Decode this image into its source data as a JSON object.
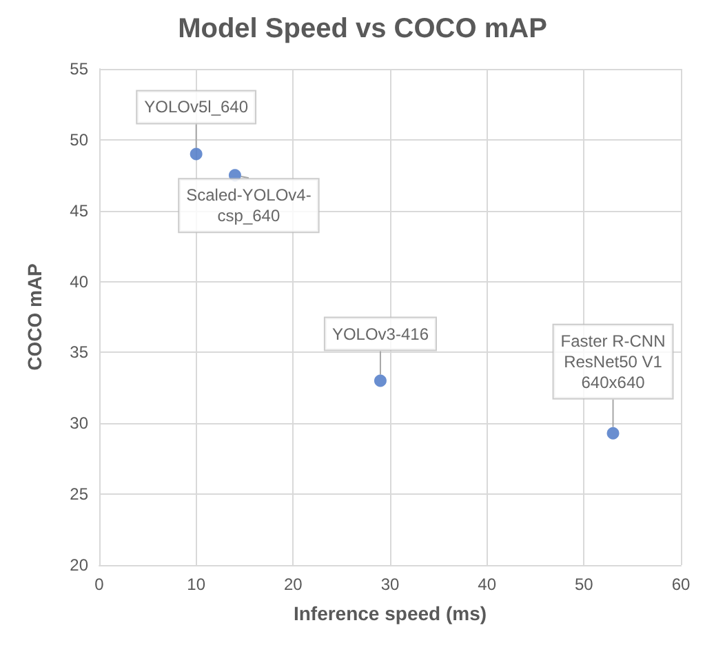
{
  "chart_data": {
    "type": "scatter",
    "title": "Model Speed vs COCO mAP",
    "xlabel": "Inference speed (ms)",
    "ylabel": "COCO mAP",
    "x": [
      10,
      14,
      29,
      53
    ],
    "values": [
      49,
      47.5,
      33,
      29.3
    ],
    "color": "#4472c4",
    "marker": "circle",
    "xlim": [
      0,
      60
    ],
    "xticks": [
      0,
      10,
      20,
      30,
      40,
      50,
      60
    ],
    "ylim": [
      20,
      55
    ],
    "yticks": [
      20,
      25,
      30,
      35,
      40,
      45,
      50,
      55
    ],
    "grid": true,
    "annotations": [
      {
        "text": "YOLOv5l_640",
        "x": 10,
        "y": 49
      },
      {
        "text": "Scaled-YOLOv4-\ncsp_640",
        "x": 14,
        "y": 47.5
      },
      {
        "text": "YOLOv3-416",
        "x": 29,
        "y": 33
      },
      {
        "text": "Faster R-CNN\nResNet50 V1\n640x640",
        "x": 53,
        "y": 29.3
      }
    ]
  }
}
